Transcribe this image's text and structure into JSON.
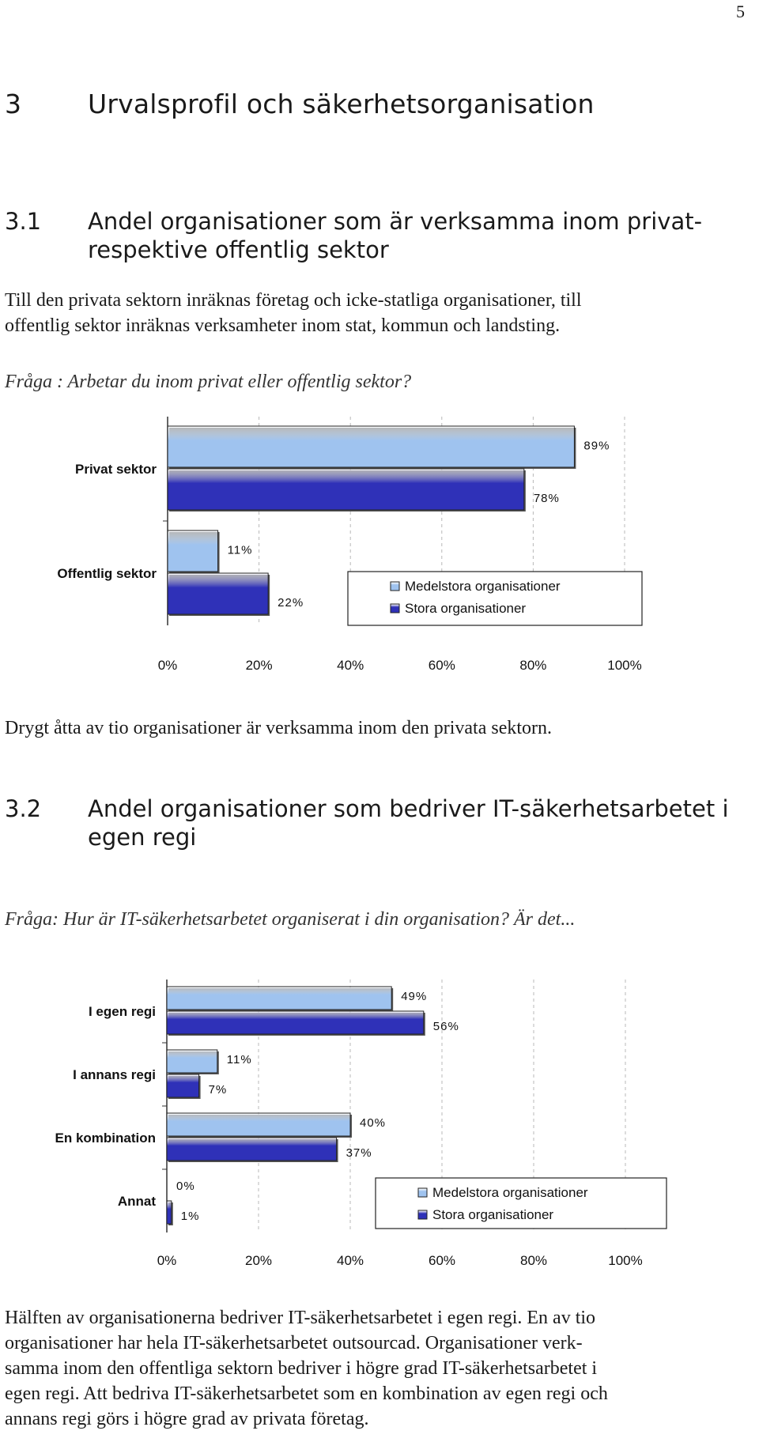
{
  "page_number": "5",
  "section": {
    "number": "3",
    "title": "Urvalsprofil och säkerhetsorganisation"
  },
  "sub1": {
    "number": "3.1",
    "title_line1": "Andel organisationer som är verksamma inom privat-",
    "title_line2": "respektive offentlig sektor",
    "intro_line1": "Till den privata sektorn inräknas företag och icke-statliga organisationer, till",
    "intro_line2": "offentlig sektor inräknas verksamheter inom stat, kommun och landsting.",
    "question": "Fråga : Arbetar du inom privat eller offentlig sektor?",
    "conclusion": "Drygt åtta av tio organisationer är verksamma inom den privata sektorn."
  },
  "sub2": {
    "number": "3.2",
    "title_line1": "Andel organisationer som bedriver IT-säkerhetsarbetet i",
    "title_line2": "egen regi",
    "question": "Fråga: Hur är IT-säkerhetsarbetet organiserat i din organisation? Är det...",
    "conclusion_lines": [
      "Hälften av organisationerna bedriver IT-säkerhetsarbetet i egen regi. En av tio",
      "organisationer har hela IT-säkerhetsarbetet outsourcad. Organisationer verk-",
      "samma inom den offentliga sektorn bedriver i högre grad IT-säkerhetsarbetet i",
      "egen regi. Att bedriva IT-säkerhetsarbetet som en kombination av egen regi och",
      "annans regi görs i högre grad av privata företag."
    ]
  },
  "chart_data": [
    {
      "type": "bar",
      "orientation": "horizontal",
      "categories": [
        "Privat sektor",
        "Offentlig sektor"
      ],
      "series": [
        {
          "name": "Medelstora organisationer",
          "values": [
            89,
            11
          ],
          "labels": [
            "89%",
            "11%"
          ],
          "color": "#9fc3ef"
        },
        {
          "name": "Stora organisationer",
          "values": [
            78,
            22
          ],
          "labels": [
            "78%",
            "22%"
          ],
          "color": "#2f31b8"
        }
      ],
      "xlim": [
        0,
        100
      ],
      "xticks": [
        "0%",
        "20%",
        "40%",
        "60%",
        "80%",
        "100%"
      ],
      "legend": "bottom-right",
      "grid": true
    },
    {
      "type": "bar",
      "orientation": "horizontal",
      "categories": [
        "I egen regi",
        "I annans regi",
        "En kombination",
        "Annat"
      ],
      "series": [
        {
          "name": "Medelstora organisationer",
          "values": [
            49,
            11,
            40,
            0
          ],
          "labels": [
            "49%",
            "11%",
            "40%",
            "0%"
          ],
          "color": "#9fc3ef"
        },
        {
          "name": "Stora organisationer",
          "values": [
            56,
            7,
            37,
            1
          ],
          "labels": [
            "56%",
            "7%",
            "37%",
            "1%"
          ],
          "color": "#2f31b8"
        }
      ],
      "xlim": [
        0,
        100
      ],
      "xticks": [
        "0%",
        "20%",
        "40%",
        "60%",
        "80%",
        "100%"
      ],
      "legend": "bottom-right",
      "grid": true
    }
  ]
}
